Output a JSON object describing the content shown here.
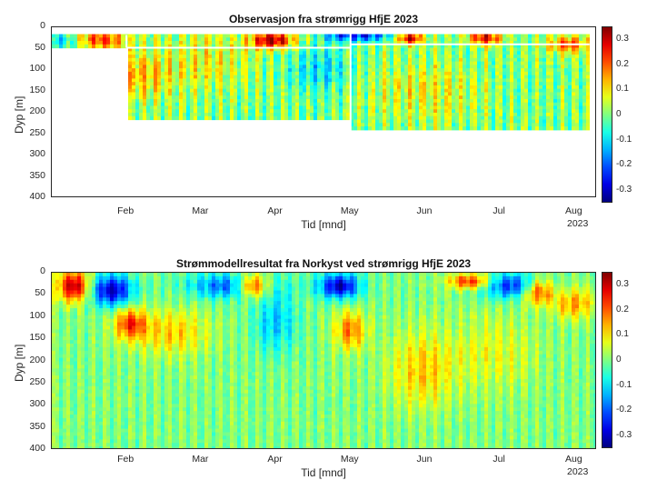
{
  "chart_data": [
    {
      "type": "heatmap",
      "title": "Observasjon fra strømrigg HfjE 2023",
      "xlabel": "Tid [mnd]",
      "ylabel": "Dyp [m]",
      "x_ticks": [
        "Feb",
        "Mar",
        "Apr",
        "May",
        "Jun",
        "Jul",
        "Aug"
      ],
      "year_label": "2023",
      "y_ticks": [
        "0",
        "50",
        "100",
        "150",
        "200",
        "250",
        "300",
        "350",
        "400"
      ],
      "ylim": [
        400,
        0
      ],
      "colorbar": {
        "ticks": [
          "0.3",
          "0.2",
          "0.1",
          "0",
          "-0.1",
          "-0.2",
          "-0.3"
        ],
        "clim": [
          -0.35,
          0.35
        ]
      },
      "colormap": "jet",
      "data_extent": [
        {
          "start_month": 0.0,
          "end_month": 1.0,
          "depth_min": 18,
          "depth_max": 48
        },
        {
          "start_month": 1.0,
          "end_month": 4.0,
          "depth_min": 18,
          "depth_max": 220
        },
        {
          "start_month": 4.0,
          "end_month": 7.2,
          "depth_min": 18,
          "depth_max": 240
        }
      ]
    },
    {
      "type": "heatmap",
      "title": "Strømmodellresultat fra Norkyst ved strømrigg HfjE 2023",
      "xlabel": "Tid [mnd]",
      "ylabel": "Dyp [m]",
      "x_ticks": [
        "Feb",
        "Mar",
        "Apr",
        "May",
        "Jun",
        "Jul",
        "Aug"
      ],
      "year_label": "2023",
      "y_ticks": [
        "0",
        "50",
        "100",
        "150",
        "200",
        "250",
        "300",
        "350",
        "400"
      ],
      "ylim": [
        400,
        0
      ],
      "colorbar": {
        "ticks": [
          "0.3",
          "0.2",
          "0.1",
          "0",
          "-0.1",
          "-0.2",
          "-0.3"
        ],
        "clim": [
          -0.35,
          0.35
        ]
      },
      "colormap": "jet"
    }
  ]
}
